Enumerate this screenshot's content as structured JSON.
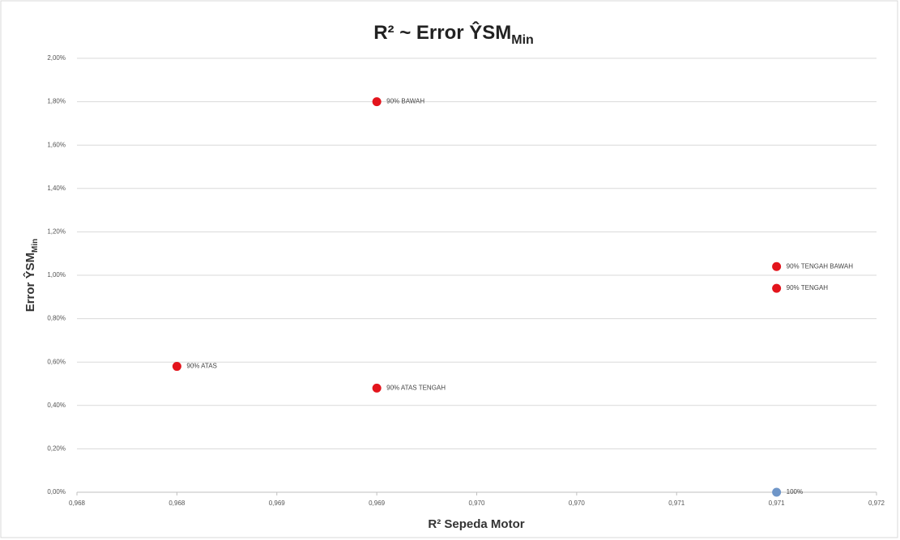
{
  "chart_data": {
    "type": "scatter",
    "title": "R² ~ Error ŶSM",
    "title_subscript": "Min",
    "x_label": "R² Sepeda Motor",
    "y_label": "Error ŶSM",
    "y_label_subscript": "Min",
    "x": [
      0.968,
      0.969,
      0.969,
      0.971,
      0.971,
      0.971
    ],
    "values": [
      0.58,
      1.8,
      0.48,
      1.04,
      0.94,
      0.0
    ],
    "labels": [
      "90% ATAS",
      "90% BAWAH",
      "90% ATAS TENGAH",
      "90% TENGAH BAWAH",
      "90% TENGAH",
      "100%"
    ],
    "colors": [
      "#e3141c",
      "#e3141c",
      "#e3141c",
      "#e3141c",
      "#e3141c",
      "#6f96c8"
    ],
    "xlim": [
      0.9675,
      0.9715
    ],
    "xticks": [
      {
        "value": 0.9675,
        "label": "0,968"
      },
      {
        "value": 0.968,
        "label": "0,968"
      },
      {
        "value": 0.9685,
        "label": "0,969"
      },
      {
        "value": 0.969,
        "label": "0,969"
      },
      {
        "value": 0.9695,
        "label": "0,970"
      },
      {
        "value": 0.97,
        "label": "0,970"
      },
      {
        "value": 0.9705,
        "label": "0,971"
      },
      {
        "value": 0.971,
        "label": "0,971"
      },
      {
        "value": 0.9715,
        "label": "0,972"
      }
    ],
    "ylim": [
      0,
      2
    ],
    "yticks": [
      {
        "value": 0,
        "label": "0,00%"
      },
      {
        "value": 0.2,
        "label": "0,20%"
      },
      {
        "value": 0.4,
        "label": "0,40%"
      },
      {
        "value": 0.6,
        "label": "0,60%"
      },
      {
        "value": 0.8,
        "label": "0,80%"
      },
      {
        "value": 1.0,
        "label": "1,00%"
      },
      {
        "value": 1.2,
        "label": "1,20%"
      },
      {
        "value": 1.4,
        "label": "1,40%"
      },
      {
        "value": 1.6,
        "label": "1,60%"
      },
      {
        "value": 1.8,
        "label": "1,80%"
      },
      {
        "value": 2.0,
        "label": "2,00%"
      }
    ],
    "grid": true
  }
}
